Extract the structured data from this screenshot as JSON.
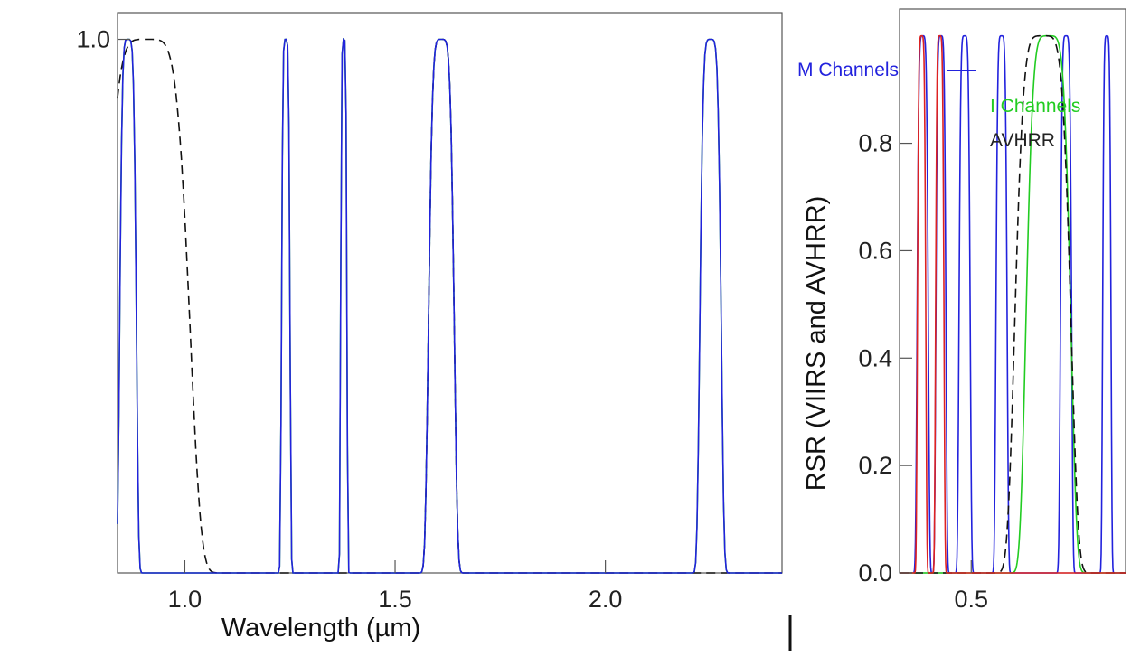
{
  "chart_data": [
    {
      "type": "line",
      "panel": "left",
      "xlabel": "Wavelength (µm)",
      "ylabel": "",
      "xlim": [
        0.84,
        2.42
      ],
      "ylim": [
        0.0,
        1.05
      ],
      "x_ticks": [
        1.0,
        1.5,
        2.0
      ],
      "x_tick_labels": [
        "1.0",
        "1.5",
        "2.0"
      ],
      "y_ticks": [
        1.0
      ],
      "y_tick_labels": [
        "1.0"
      ],
      "series": [
        {
          "color": "#22cc22",
          "style": "solid",
          "bands": [
            {
              "c": 0.865,
              "w": 0.039
            },
            {
              "c": 1.24,
              "w": 0.02
            },
            {
              "c": 1.378,
              "w": 0.015
            },
            {
              "c": 1.61,
              "w": 0.06
            },
            {
              "c": 2.25,
              "w": 0.05
            }
          ]
        },
        {
          "color": "#111111",
          "style": "dashed",
          "bands": [
            {
              "c": 0.91,
              "w": 0.2
            },
            {
              "c": 1.61,
              "w": 0.06
            }
          ]
        },
        {
          "color": "#2222dd",
          "style": "solid",
          "bands": [
            {
              "c": 0.865,
              "w": 0.039
            },
            {
              "c": 1.24,
              "w": 0.02
            },
            {
              "c": 1.378,
              "w": 0.015
            },
            {
              "c": 1.61,
              "w": 0.06
            },
            {
              "c": 2.25,
              "w": 0.05
            }
          ]
        }
      ]
    },
    {
      "type": "line",
      "panel": "right",
      "xlabel": "",
      "ylabel": "RSR (VIIRS and AVHRR)",
      "xlim": [
        0.37,
        0.78
      ],
      "ylim": [
        0.0,
        1.05
      ],
      "x_ticks": [
        0.5
      ],
      "x_tick_labels": [
        "0.5"
      ],
      "y_ticks": [
        0.0,
        0.2,
        0.4,
        0.6,
        0.8
      ],
      "y_tick_labels": [
        "0.0",
        "0.2",
        "0.4",
        "0.6",
        "0.8"
      ],
      "series": [
        {
          "name": "M Channels",
          "color": "#2222dd",
          "style": "solid",
          "bands": [
            {
              "c": 0.412,
              "w": 0.02
            },
            {
              "c": 0.445,
              "w": 0.018
            },
            {
              "c": 0.488,
              "w": 0.02
            },
            {
              "c": 0.555,
              "w": 0.02
            },
            {
              "c": 0.672,
              "w": 0.02
            },
            {
              "c": 0.746,
              "w": 0.015
            }
          ]
        },
        {
          "name": "I Channels",
          "color": "#22cc22",
          "style": "solid",
          "bands": [
            {
              "c": 0.64,
              "w": 0.08
            }
          ]
        },
        {
          "name": "AVHRR",
          "color": "#111111",
          "style": "dashed",
          "bands": [
            {
              "c": 0.63,
              "w": 0.1
            }
          ]
        },
        {
          "color": "#dd2222",
          "style": "solid",
          "bands": [
            {
              "c": 0.41,
              "w": 0.015
            },
            {
              "c": 0.443,
              "w": 0.015
            }
          ]
        }
      ],
      "legend": "top-right"
    }
  ],
  "labels": {
    "left_xlabel": "Wavelength (µm)",
    "ylabel_right": "RSR (VIIRS and AVHRR)",
    "legend_m": "M Channels",
    "legend_i": "I Channels",
    "legend_avhrr": "AVHRR"
  }
}
